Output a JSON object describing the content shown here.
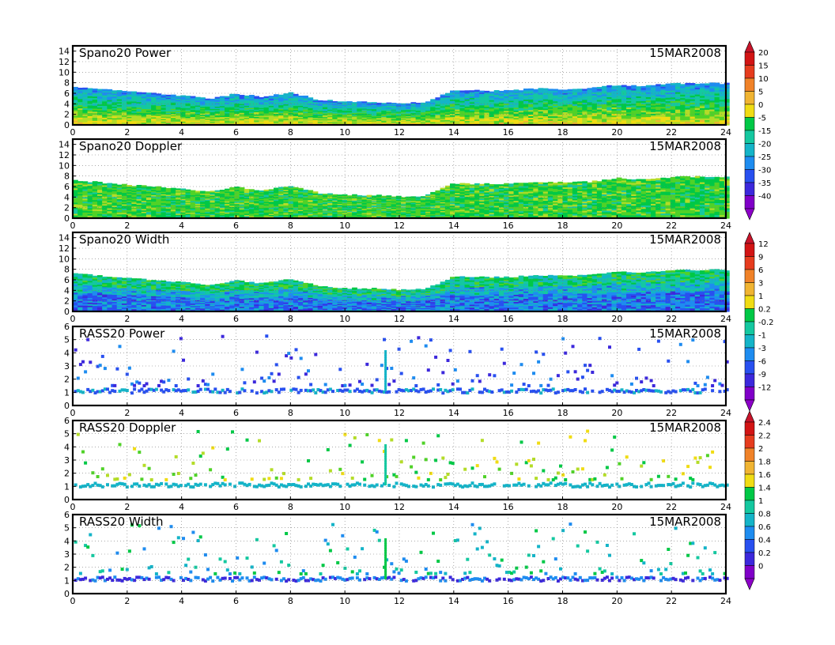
{
  "chart_data": [
    {
      "type": "heatmap",
      "title": "Spano20 Power",
      "date": "15MAR2008",
      "xlim": [
        0,
        24
      ],
      "ylim": [
        0,
        15
      ],
      "xticks": [
        "0",
        "2",
        "4",
        "6",
        "8",
        "10",
        "12",
        "14",
        "16",
        "18",
        "20",
        "22",
        "24"
      ],
      "yticks": [
        "0",
        "2",
        "4",
        "6",
        "8",
        "10",
        "12",
        "14"
      ],
      "grid": true,
      "echo_top": [
        [
          0,
          7.2
        ],
        [
          1,
          6.8
        ],
        [
          2,
          6.3
        ],
        [
          3,
          6.0
        ],
        [
          4,
          5.6
        ],
        [
          5,
          5.0
        ],
        [
          6,
          5.9
        ],
        [
          7,
          5.3
        ],
        [
          8,
          6.2
        ],
        [
          9,
          4.8
        ],
        [
          10,
          4.4
        ],
        [
          11,
          4.4
        ],
        [
          12,
          4.1
        ],
        [
          13,
          4.3
        ],
        [
          14,
          6.6
        ],
        [
          15,
          6.5
        ],
        [
          16,
          6.5
        ],
        [
          17,
          6.9
        ],
        [
          18,
          6.8
        ],
        [
          19,
          6.9
        ],
        [
          20,
          7.6
        ],
        [
          21,
          7.4
        ],
        [
          22,
          7.8
        ],
        [
          23,
          7.9
        ],
        [
          24,
          7.9
        ]
      ]
    },
    {
      "type": "heatmap",
      "title": "Spano20 Doppler",
      "date": "15MAR2008",
      "xlim": [
        0,
        24
      ],
      "ylim": [
        0,
        15
      ],
      "xticks": [
        "0",
        "2",
        "4",
        "6",
        "8",
        "10",
        "12",
        "14",
        "16",
        "18",
        "20",
        "22",
        "24"
      ],
      "yticks": [
        "0",
        "2",
        "4",
        "6",
        "8",
        "10",
        "12",
        "14"
      ],
      "grid": true,
      "echo_top": [
        [
          0,
          7.2
        ],
        [
          1,
          6.8
        ],
        [
          2,
          6.3
        ],
        [
          3,
          6.0
        ],
        [
          4,
          5.6
        ],
        [
          5,
          5.0
        ],
        [
          6,
          5.9
        ],
        [
          7,
          5.3
        ],
        [
          8,
          6.2
        ],
        [
          9,
          4.8
        ],
        [
          10,
          4.4
        ],
        [
          11,
          4.4
        ],
        [
          12,
          4.1
        ],
        [
          13,
          4.3
        ],
        [
          14,
          6.6
        ],
        [
          15,
          6.5
        ],
        [
          16,
          6.5
        ],
        [
          17,
          6.9
        ],
        [
          18,
          6.8
        ],
        [
          19,
          6.9
        ],
        [
          20,
          7.6
        ],
        [
          21,
          7.4
        ],
        [
          22,
          7.8
        ],
        [
          23,
          7.9
        ],
        [
          24,
          7.9
        ]
      ]
    },
    {
      "type": "heatmap",
      "title": "Spano20 Width",
      "date": "15MAR2008",
      "xlim": [
        0,
        24
      ],
      "ylim": [
        0,
        15
      ],
      "xticks": [
        "0",
        "2",
        "4",
        "6",
        "8",
        "10",
        "12",
        "14",
        "16",
        "18",
        "20",
        "22",
        "24"
      ],
      "yticks": [
        "0",
        "2",
        "4",
        "6",
        "8",
        "10",
        "12",
        "14"
      ],
      "grid": true,
      "echo_top": [
        [
          0,
          7.2
        ],
        [
          1,
          6.8
        ],
        [
          2,
          6.3
        ],
        [
          3,
          6.0
        ],
        [
          4,
          5.6
        ],
        [
          5,
          5.0
        ],
        [
          6,
          5.9
        ],
        [
          7,
          5.3
        ],
        [
          8,
          6.2
        ],
        [
          9,
          4.8
        ],
        [
          10,
          4.4
        ],
        [
          11,
          4.4
        ],
        [
          12,
          4.1
        ],
        [
          13,
          4.3
        ],
        [
          14,
          6.6
        ],
        [
          15,
          6.5
        ],
        [
          16,
          6.5
        ],
        [
          17,
          6.9
        ],
        [
          18,
          6.8
        ],
        [
          19,
          6.9
        ],
        [
          20,
          7.6
        ],
        [
          21,
          7.4
        ],
        [
          22,
          7.8
        ],
        [
          23,
          7.9
        ],
        [
          24,
          7.9
        ]
      ]
    },
    {
      "type": "scatter",
      "title": "RASS20 Power",
      "date": "15MAR2008",
      "xlim": [
        0,
        24
      ],
      "ylim": [
        0,
        6
      ],
      "xticks": [
        "0",
        "2",
        "4",
        "6",
        "8",
        "10",
        "12",
        "14",
        "16",
        "18",
        "20",
        "22",
        "24"
      ],
      "yticks": [
        "0",
        "1",
        "2",
        "3",
        "4",
        "5",
        "6"
      ],
      "grid": true,
      "band_height": 1.2
    },
    {
      "type": "scatter",
      "title": "RASS20 Doppler",
      "date": "15MAR2008",
      "xlim": [
        0,
        24
      ],
      "ylim": [
        0,
        6
      ],
      "xticks": [
        "0",
        "2",
        "4",
        "6",
        "8",
        "10",
        "12",
        "14",
        "16",
        "18",
        "20",
        "22",
        "24"
      ],
      "yticks": [
        "0",
        "1",
        "2",
        "3",
        "4",
        "5",
        "6"
      ],
      "grid": true,
      "band_height": 1.2
    },
    {
      "type": "scatter",
      "title": "RASS20 Width",
      "date": "15MAR2008",
      "xlim": [
        0,
        24
      ],
      "ylim": [
        0,
        6
      ],
      "xticks": [
        "0",
        "2",
        "4",
        "6",
        "8",
        "10",
        "12",
        "14",
        "16",
        "18",
        "20",
        "22",
        "24"
      ],
      "yticks": [
        "0",
        "1",
        "2",
        "3",
        "4",
        "5",
        "6"
      ],
      "grid": true,
      "band_height": 1.2
    }
  ],
  "colorbars": [
    {
      "labels": [
        "20",
        "15",
        "10",
        "5",
        "0",
        "-5",
        "-15",
        "-20",
        "-25",
        "-30",
        "-35",
        "-40"
      ]
    },
    {
      "labels": [
        "12",
        "9",
        "6",
        "3",
        "1",
        "0.2",
        "-0.2",
        "-1",
        "-3",
        "-6",
        "-9",
        "-12"
      ]
    },
    {
      "labels": [
        "2.4",
        "2.2",
        "2",
        "1.8",
        "1.6",
        "1.4",
        "1",
        "0.8",
        "0.6",
        "0.4",
        "0.2",
        "0"
      ]
    }
  ],
  "palette": [
    "#8000c8",
    "#3c28dc",
    "#2850f0",
    "#1e8cf0",
    "#14b4c8",
    "#14c8a0",
    "#00c846",
    "#50d228",
    "#b4dc28",
    "#f0dc14",
    "#f0b432",
    "#f08228",
    "#e63c1e",
    "#d21414"
  ]
}
